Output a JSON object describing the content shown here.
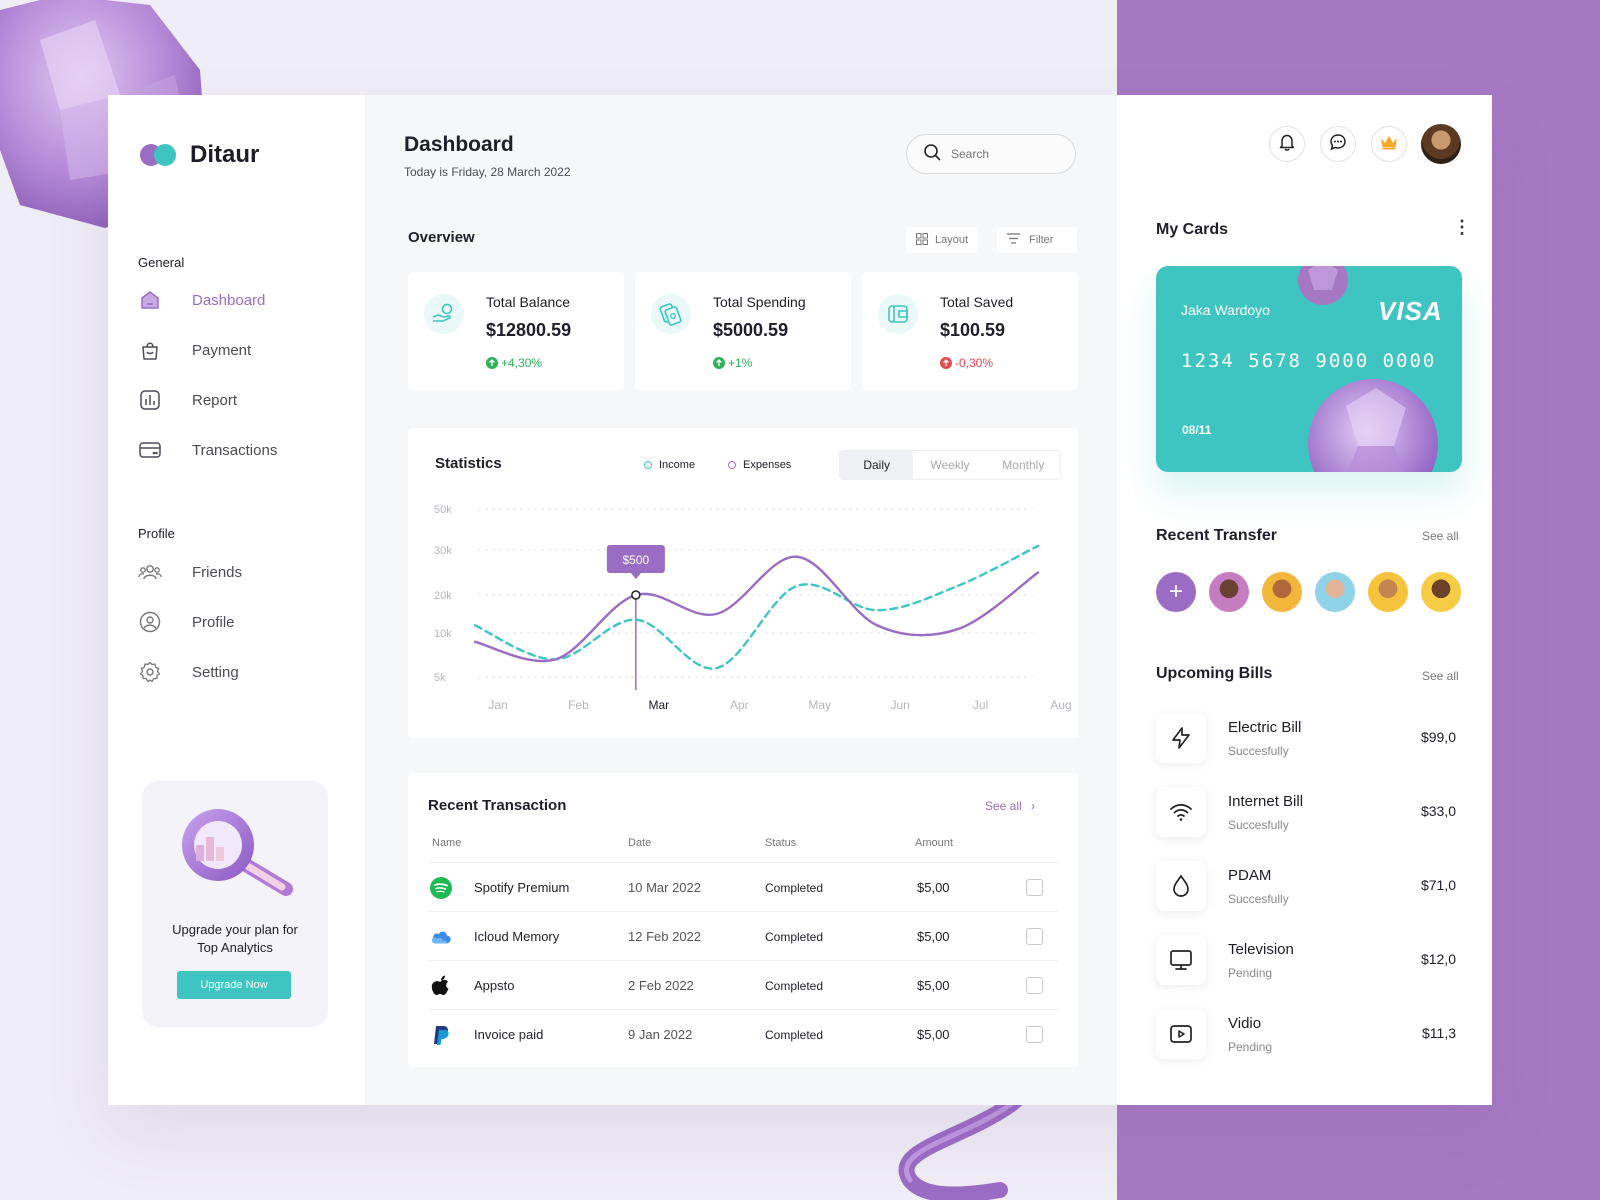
{
  "brand": {
    "name": "Ditaur"
  },
  "sidebar": {
    "general_label": "General",
    "profile_label": "Profile",
    "general_items": [
      {
        "label": "Dashboard",
        "icon": "dashboard-icon",
        "active": true
      },
      {
        "label": "Payment",
        "icon": "bag-icon"
      },
      {
        "label": "Report",
        "icon": "report-icon"
      },
      {
        "label": "Transactions",
        "icon": "card-icon"
      }
    ],
    "profile_items": [
      {
        "label": "Friends",
        "icon": "friends-icon"
      },
      {
        "label": "Profile",
        "icon": "user-icon"
      },
      {
        "label": "Setting",
        "icon": "gear-icon"
      }
    ],
    "upgrade": {
      "text_line1": "Upgrade your plan for",
      "text_line2": "Top Analytics",
      "button": "Upgrade Now"
    }
  },
  "header": {
    "title": "Dashboard",
    "subtitle": "Today is Friday, 28 March 2022",
    "search_placeholder": "Search"
  },
  "overview": {
    "title": "Overview",
    "layout_label": "Layout",
    "filter_label": "Filter",
    "cards": [
      {
        "label": "Total Balance",
        "value": "$12800.59",
        "change": "+4,30%",
        "trend": "up",
        "icon": "hand-coin-icon"
      },
      {
        "label": "Total Spending",
        "value": "$5000.59",
        "change": "+1%",
        "trend": "up",
        "icon": "money-icon"
      },
      {
        "label": "Total Saved",
        "value": "$100.59",
        "change": "-0,30%",
        "trend": "down",
        "icon": "wallet-icon"
      }
    ],
    "colors": {
      "up": "#2eb15a",
      "down": "#e8494f",
      "accent": "#3ec5c2",
      "purple": "#9a6cc4"
    }
  },
  "statistics": {
    "title": "Statistics",
    "legend_income": "Income",
    "legend_expenses": "Expenses",
    "tabs": [
      "Daily",
      "Weekly",
      "Monthly"
    ],
    "active_tab": "Daily",
    "tooltip": "$500"
  },
  "chart_data": {
    "type": "line",
    "x": [
      "Jan",
      "Feb",
      "Mar",
      "Apr",
      "May",
      "Jun",
      "Jul",
      "Aug"
    ],
    "y_ticks": [
      "50k",
      "30k",
      "20k",
      "10k",
      "5k"
    ],
    "series": [
      {
        "name": "Income",
        "style": "dashed",
        "color": "#3ec5c2",
        "values": [
          12,
          7,
          13.5,
          6,
          22,
          16,
          22,
          32
        ]
      },
      {
        "name": "Expenses",
        "style": "solid",
        "color": "#9a6cc4",
        "values": [
          9,
          7,
          20,
          15,
          28.5,
          12,
          11,
          25
        ]
      }
    ],
    "highlight": {
      "x": "Mar",
      "label": "$500"
    },
    "grid": true
  },
  "transactions": {
    "title": "Recent Transaction",
    "see_all": "See all",
    "columns": [
      "Name",
      "Date",
      "Status",
      "Amount"
    ],
    "rows": [
      {
        "name": "Spotify Premium",
        "date": "10 Mar 2022",
        "status": "Completed",
        "amount": "$5,00",
        "icon": "spotify-icon"
      },
      {
        "name": "Icloud Memory",
        "date": "12 Feb 2022",
        "status": "Completed",
        "amount": "$5,00",
        "icon": "cloud-icon"
      },
      {
        "name": "Appsto",
        "date": "2 Feb 2022",
        "status": "Completed",
        "amount": "$5,00",
        "icon": "apple-icon"
      },
      {
        "name": "Invoice paid",
        "date": "9 Jan 2022",
        "status": "Completed",
        "amount": "$5,00",
        "icon": "paypal-icon"
      }
    ]
  },
  "right": {
    "my_cards": "My Cards",
    "card": {
      "holder": "Jaka Wardoyo",
      "brand": "VISA",
      "number": "1234 5678 9000 0000",
      "expiry": "08/11"
    },
    "recent_transfer": "Recent Transfer",
    "see_all": "See all",
    "upcoming_bills": "Upcoming Bills",
    "bills": [
      {
        "name": "Electric Bill",
        "status": "Succesfully",
        "amount": "$99,0",
        "icon": "lightning-icon"
      },
      {
        "name": "Internet Bill",
        "status": "Succesfully",
        "amount": "$33,0",
        "icon": "wifi-icon"
      },
      {
        "name": "PDAM",
        "status": "Succesfully",
        "amount": "$71,0",
        "icon": "water-drop-icon"
      },
      {
        "name": "Television",
        "status": "Pending",
        "amount": "$12,0",
        "icon": "monitor-icon"
      },
      {
        "name": "Vidio",
        "status": "Pending",
        "amount": "$11,3",
        "icon": "video-icon"
      }
    ]
  }
}
